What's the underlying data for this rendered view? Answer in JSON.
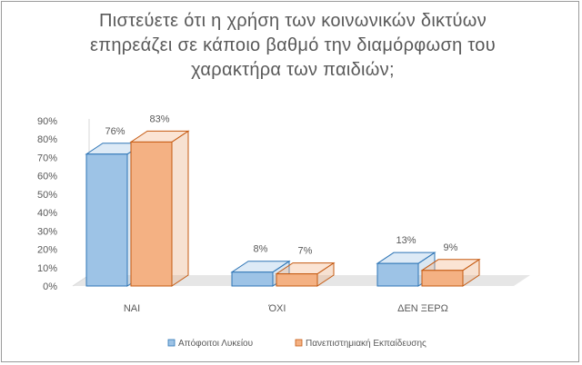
{
  "chart_data": {
    "type": "bar",
    "title_lines": [
      "Πιστεύετε ότι η χρήση των κοινωνικών δικτύων",
      "επηρεάζει σε κάποιο βαθμό την διαμόρφωση του",
      "χαρακτήρα των παιδιών;"
    ],
    "categories": [
      "ΝΑΙ",
      "ΌΧΙ",
      "ΔΕΝ ΞΕΡΩ"
    ],
    "series": [
      {
        "name": "Απόφοιτοι Λυκείου",
        "values": [
          76,
          8,
          13
        ],
        "labels": [
          "76%",
          "8%",
          "13%"
        ],
        "color": "#9dc3e6",
        "edge": "#2e75b6"
      },
      {
        "name": "Πανεπιστημιακή Εκπαίδευσης",
        "values": [
          83,
          7,
          9
        ],
        "labels": [
          "83%",
          "7%",
          "9%"
        ],
        "color": "#f4b183",
        "edge": "#c55a11"
      }
    ],
    "y_ticks": [
      "0%",
      "10%",
      "20%",
      "30%",
      "40%",
      "50%",
      "60%",
      "70%",
      "80%",
      "90%"
    ],
    "ylim": [
      0,
      90
    ],
    "grid": false,
    "legend_position": "bottom",
    "style": "3d-clustered-column"
  }
}
